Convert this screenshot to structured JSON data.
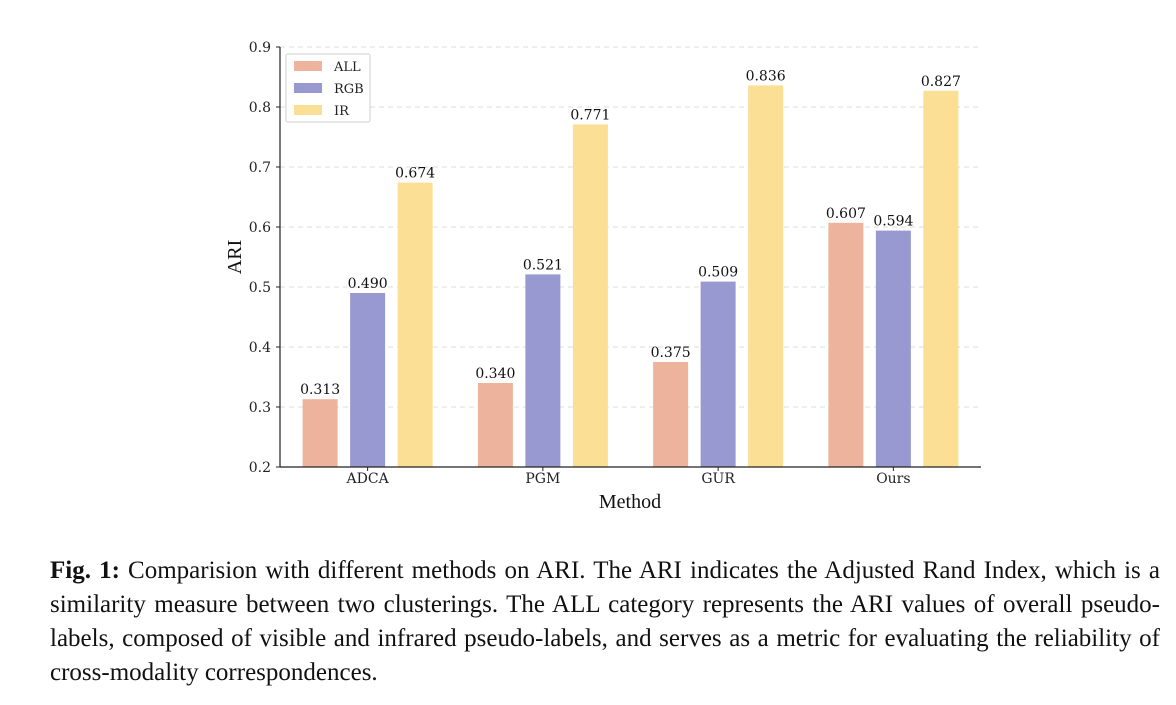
{
  "chart_data": {
    "type": "bar",
    "categories": [
      "ADCA",
      "PGM",
      "GUR",
      "Ours"
    ],
    "series": [
      {
        "name": "ALL",
        "color": "#EDB39C",
        "values": [
          0.313,
          0.34,
          0.375,
          0.607
        ]
      },
      {
        "name": "RGB",
        "color": "#9799D0",
        "values": [
          0.49,
          0.521,
          0.509,
          0.594
        ]
      },
      {
        "name": "IR",
        "color": "#FADF95",
        "values": [
          0.674,
          0.771,
          0.836,
          0.827
        ]
      }
    ],
    "value_labels": [
      [
        "0.313",
        "0.340",
        "0.375",
        "0.607"
      ],
      [
        "0.490",
        "0.521",
        "0.509",
        "0.594"
      ],
      [
        "0.674",
        "0.771",
        "0.836",
        "0.827"
      ]
    ],
    "title": "",
    "xlabel": "Method",
    "ylabel": "ARI",
    "ylim": [
      0.2,
      0.9
    ],
    "yticks": [
      0.2,
      0.3,
      0.4,
      0.5,
      0.6,
      0.7,
      0.8,
      0.9
    ],
    "ytick_labels": [
      "0.2",
      "0.3",
      "0.4",
      "0.5",
      "0.6",
      "0.7",
      "0.8",
      "0.9"
    ],
    "grid": "horizontal-dashed",
    "legend_position": "top-left"
  },
  "caption": {
    "label": "Fig. 1:",
    "text": " Comparision with different methods on ARI. The ARI indicates the Adjusted Rand Index, which is a similarity measure between two clusterings. The ALL category represents the ARI values of overall pseudo-labels, composed of visible and infrared pseudo-labels, and serves as a metric for evaluating the reliability of cross-modality correspondences."
  }
}
